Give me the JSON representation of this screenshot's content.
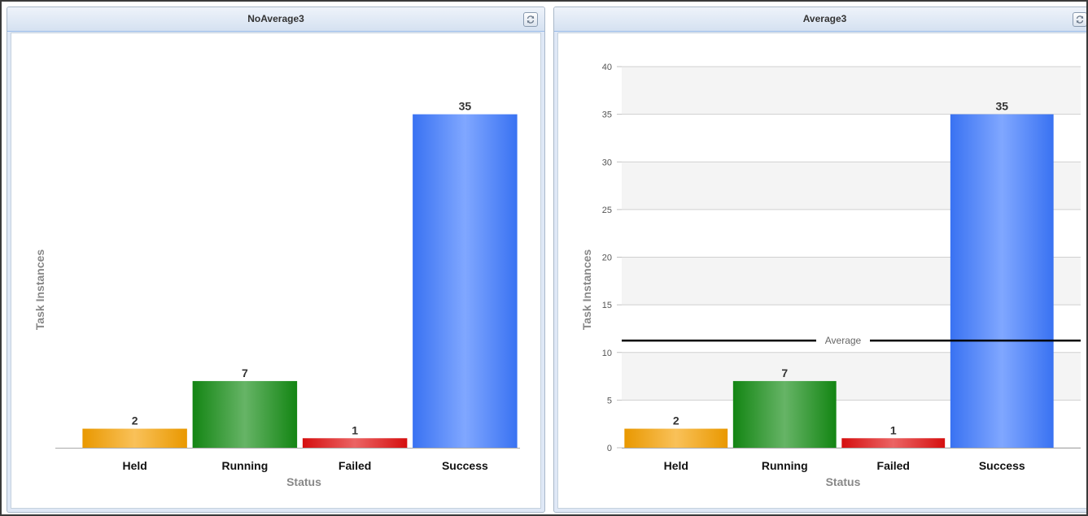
{
  "panels": [
    {
      "title": "NoAverage3",
      "refresh_icon": "refresh-icon",
      "chart_data": {
        "type": "bar",
        "categories": [
          "Held",
          "Running",
          "Failed",
          "Success"
        ],
        "values": [
          2,
          7,
          1,
          35
        ],
        "colors": [
          "#f5a000",
          "#148c14",
          "#e01010",
          "#3c78ff"
        ],
        "title": "",
        "xlabel": "Status",
        "ylabel": "Task Instances",
        "ylim": [
          0,
          40
        ],
        "show_y_axis": false,
        "grid": false,
        "data_labels": [
          "2",
          "7",
          "1",
          "35"
        ]
      }
    },
    {
      "title": "Average3",
      "refresh_icon": "refresh-icon",
      "chart_data": {
        "type": "bar",
        "categories": [
          "Held",
          "Running",
          "Failed",
          "Success"
        ],
        "values": [
          2,
          7,
          1,
          35
        ],
        "colors": [
          "#f5a000",
          "#148c14",
          "#e01010",
          "#3c78ff"
        ],
        "title": "",
        "xlabel": "Status",
        "ylabel": "Task Instances",
        "ylim": [
          0,
          40
        ],
        "yticks": [
          "0",
          "5",
          "10",
          "15",
          "20",
          "25",
          "30",
          "35",
          "40"
        ],
        "show_y_axis": true,
        "grid": true,
        "data_labels": [
          "2",
          "7",
          "1",
          "35"
        ],
        "average": {
          "value": 11.25,
          "label": "Average"
        }
      }
    }
  ]
}
